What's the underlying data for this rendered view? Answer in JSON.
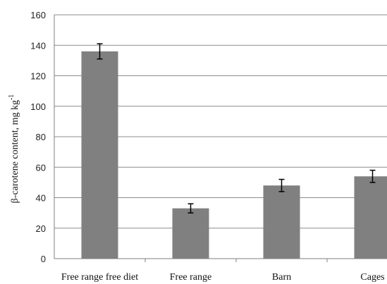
{
  "chart_data": {
    "type": "bar",
    "title": "",
    "xlabel": "",
    "ylabel": "β-carotene content, mg kg",
    "ylabel_superscript": "-1",
    "categories": [
      "Free range free diet",
      "Free range",
      "Barn",
      "Cages"
    ],
    "values": [
      136,
      33,
      48,
      54
    ],
    "error_low": [
      131,
      30,
      44,
      50
    ],
    "error_high": [
      141,
      36,
      52,
      58
    ],
    "ylim": [
      0,
      160
    ],
    "yticks": [
      "0",
      "20",
      "40",
      "60",
      "80",
      "100",
      "120",
      "140",
      "160"
    ],
    "grid": "horizontal",
    "legend": "none",
    "colors": {
      "bar": "#808080",
      "grid": "#8c8c8c",
      "axis": "#7f7f7f",
      "errorbar": "#000000"
    }
  }
}
